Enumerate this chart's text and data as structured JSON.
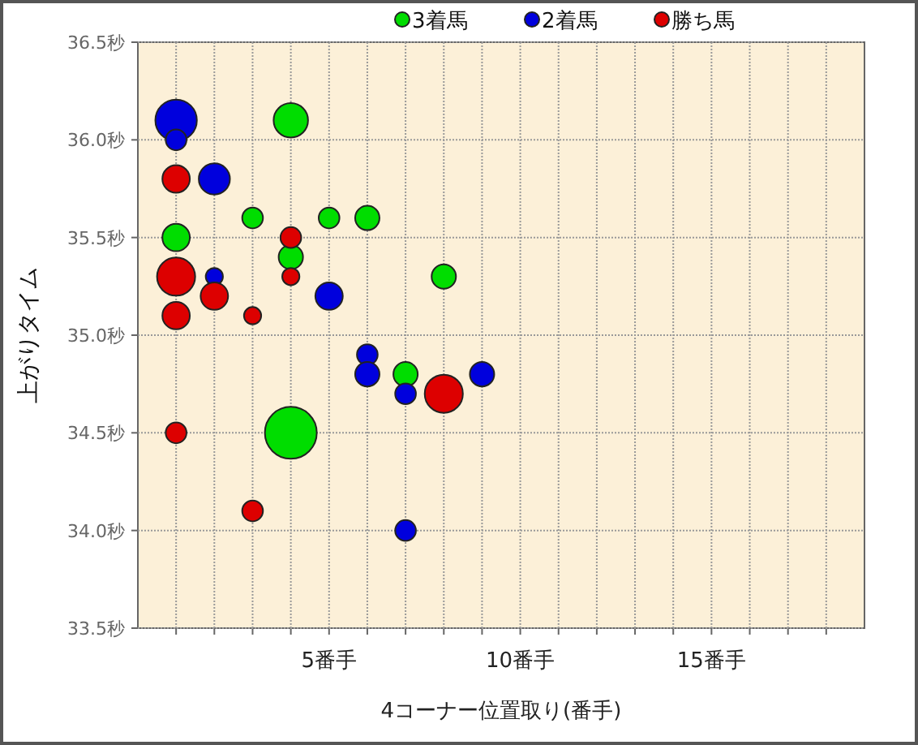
{
  "chart_data": {
    "type": "bubble",
    "xlabel": "4コーナー位置取り(番手)",
    "ylabel": "上がりタイム",
    "xlim": [
      0,
      19
    ],
    "ylim": [
      33.5,
      36.5
    ],
    "xticks": [
      {
        "value": 1,
        "label": null
      },
      {
        "value": 2,
        "label": null
      },
      {
        "value": 3,
        "label": null
      },
      {
        "value": 4,
        "label": null
      },
      {
        "value": 5,
        "label": "5番手"
      },
      {
        "value": 6,
        "label": null
      },
      {
        "value": 7,
        "label": null
      },
      {
        "value": 8,
        "label": null
      },
      {
        "value": 9,
        "label": null
      },
      {
        "value": 10,
        "label": "10番手"
      },
      {
        "value": 11,
        "label": null
      },
      {
        "value": 12,
        "label": null
      },
      {
        "value": 13,
        "label": null
      },
      {
        "value": 14,
        "label": null
      },
      {
        "value": 15,
        "label": "15番手"
      },
      {
        "value": 16,
        "label": null
      },
      {
        "value": 17,
        "label": null
      },
      {
        "value": 18,
        "label": null
      }
    ],
    "yticks": [
      {
        "value": 33.5,
        "label": "33.5秒"
      },
      {
        "value": 34.0,
        "label": "34.0秒"
      },
      {
        "value": 34.5,
        "label": "34.5秒"
      },
      {
        "value": 35.0,
        "label": "35.0秒"
      },
      {
        "value": 35.5,
        "label": "35.5秒"
      },
      {
        "value": 36.0,
        "label": "36.0秒"
      },
      {
        "value": 36.5,
        "label": "36.5秒"
      }
    ],
    "grid": true,
    "legend": "top",
    "marker": "circle",
    "series": [
      {
        "name": "3着馬",
        "color": "#00dd00",
        "x": [
          1,
          3,
          4,
          4,
          5,
          6,
          8,
          7,
          4
        ],
        "values": [
          35.5,
          35.6,
          36.1,
          35.4,
          35.6,
          35.6,
          35.3,
          34.8,
          34.5
        ],
        "sizes": [
          0.28,
          0.16,
          0.44,
          0.22,
          0.16,
          0.22,
          0.22,
          0.22,
          1
        ]
      },
      {
        "name": "2着馬",
        "color": "#0000dd",
        "x": [
          1,
          1,
          2,
          2,
          5,
          6,
          6,
          7,
          9,
          7
        ],
        "values": [
          36.1,
          36.0,
          35.8,
          35.3,
          35.2,
          34.9,
          34.8,
          34.7,
          34.8,
          34.0
        ],
        "sizes": [
          0.64,
          0.16,
          0.36,
          0.11,
          0.28,
          0.16,
          0.22,
          0.16,
          0.22,
          0.16
        ]
      },
      {
        "name": "勝ち馬",
        "color": "#dd0000",
        "x": [
          1,
          1,
          1,
          1,
          2,
          3,
          4,
          4,
          3,
          8
        ],
        "values": [
          35.8,
          35.3,
          35.1,
          34.5,
          35.2,
          35.1,
          35.5,
          35.3,
          34.1,
          34.7
        ],
        "sizes": [
          0.28,
          0.54,
          0.28,
          0.16,
          0.28,
          0.11,
          0.16,
          0.11,
          0.16,
          0.54
        ]
      }
    ]
  }
}
